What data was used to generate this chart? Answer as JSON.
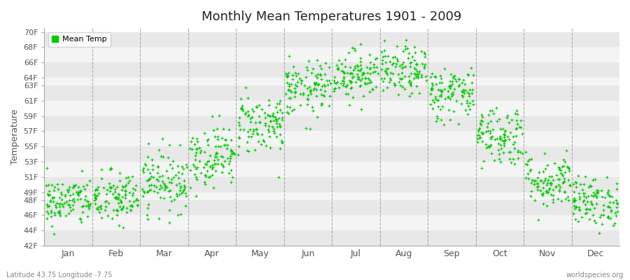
{
  "title": "Monthly Mean Temperatures 1901 - 2009",
  "ylabel": "Temperature",
  "xlabel_bottom_left": "Latitude 43.75 Longitude -7.75",
  "xlabel_bottom_right": "worldspecies.org",
  "legend_label": "Mean Temp",
  "dot_color": "#00cc00",
  "background_color": "#ffffff",
  "plot_bg_color": "#ffffff",
  "band_colors": [
    "#e8e8e8",
    "#f4f4f4"
  ],
  "yticks": [
    42,
    44,
    46,
    48,
    49,
    51,
    53,
    55,
    57,
    59,
    61,
    63,
    64,
    66,
    68,
    70
  ],
  "ylim": [
    42,
    70.5
  ],
  "months": [
    "Jan",
    "Feb",
    "Mar",
    "Apr",
    "May",
    "Jun",
    "Jul",
    "Aug",
    "Sep",
    "Oct",
    "Nov",
    "Dec"
  ],
  "n_years": 109,
  "seed": 42,
  "mean_temps_F": [
    47.8,
    48.2,
    50.5,
    53.8,
    58.0,
    62.5,
    64.5,
    64.8,
    62.0,
    56.5,
    50.5,
    47.8
  ],
  "std_temps_F": [
    1.6,
    1.8,
    2.0,
    2.0,
    2.0,
    1.8,
    1.6,
    1.6,
    1.8,
    2.0,
    1.8,
    1.6
  ]
}
